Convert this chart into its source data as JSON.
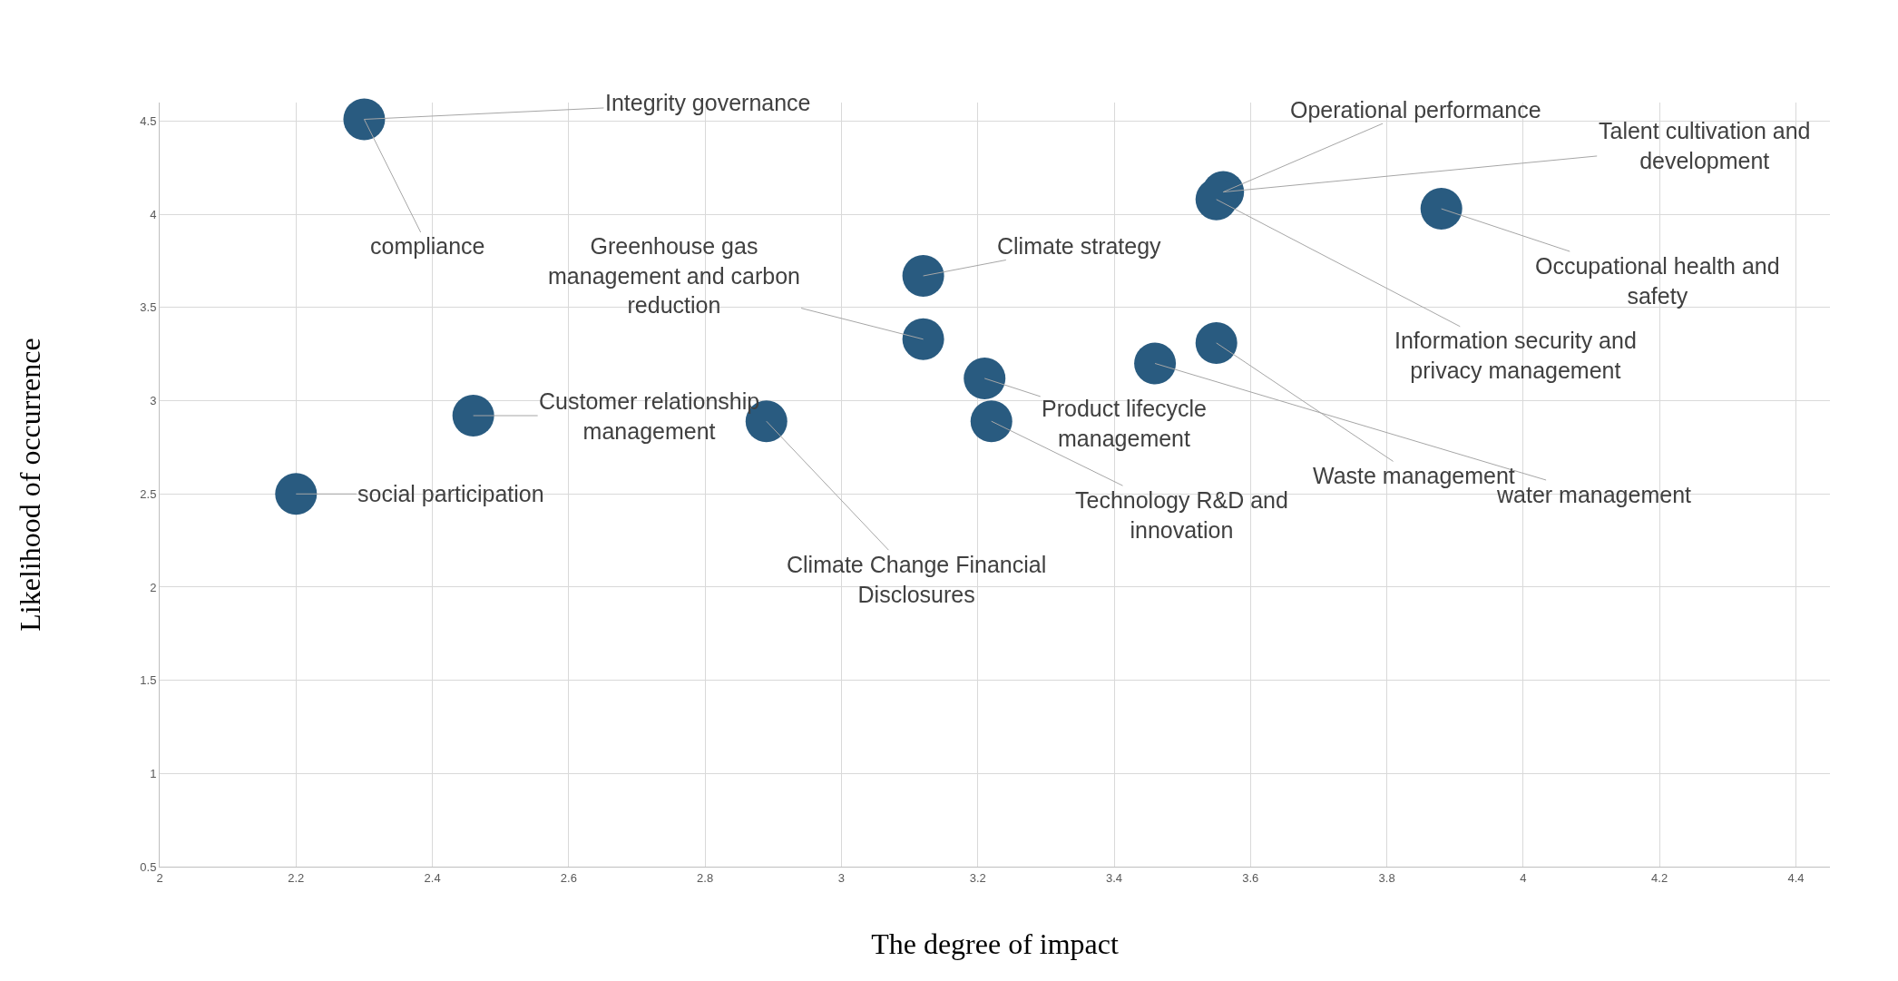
{
  "chart_data": {
    "type": "scatter",
    "xlabel": "The degree of impact",
    "ylabel": "Likelihood of occurrence",
    "x": [
      2.3,
      2.2,
      2.46,
      2.89,
      3.12,
      3.12,
      3.21,
      3.22,
      3.46,
      3.55,
      3.56,
      3.55,
      3.88
    ],
    "series": [
      {
        "color": "#295b80",
        "values": [
          4.51,
          2.5,
          2.92,
          2.89,
          3.67,
          3.33,
          3.12,
          2.89,
          3.2,
          3.31,
          4.12,
          4.08,
          4.03
        ]
      }
    ],
    "xlim": [
      2,
      4.45
    ],
    "xticks": [
      2,
      2.2,
      2.4,
      2.6,
      2.8,
      3,
      3.2,
      3.4,
      3.6,
      3.8,
      4,
      4.2,
      4.4
    ],
    "ylim": [
      0.5,
      4.6
    ],
    "yticks": [
      0.5,
      1,
      1.5,
      2,
      2.5,
      3,
      3.5,
      4,
      4.5
    ],
    "grid": true,
    "marker": "circle",
    "annotations": [
      {
        "text": "Integrity governance",
        "x": 2.3,
        "y": 4.51
      },
      {
        "text": "compliance",
        "x": 2.3,
        "y": 4.51
      },
      {
        "text": "social participation",
        "x": 2.2,
        "y": 2.5
      },
      {
        "text": "Customer relationship management",
        "x": 2.46,
        "y": 2.92
      },
      {
        "text": "Climate Change Financial Disclosures",
        "x": 2.89,
        "y": 2.89
      },
      {
        "text": "Climate strategy",
        "x": 3.12,
        "y": 3.67
      },
      {
        "text": "Greenhouse gas management and carbon reduction",
        "x": 3.12,
        "y": 3.33
      },
      {
        "text": "Product lifecycle management",
        "x": 3.21,
        "y": 3.12
      },
      {
        "text": "Technology R&D and innovation",
        "x": 3.22,
        "y": 2.89
      },
      {
        "text": "water management",
        "x": 3.46,
        "y": 3.2
      },
      {
        "text": "Waste management",
        "x": 3.55,
        "y": 3.31
      },
      {
        "text": "Operational performance",
        "x": 3.56,
        "y": 4.12
      },
      {
        "text": "Talent cultivation and development",
        "x": 3.56,
        "y": 4.12
      },
      {
        "text": "Information security and privacy management",
        "x": 3.55,
        "y": 4.08
      },
      {
        "text": "Occupational health and safety",
        "x": 3.88,
        "y": 4.03
      }
    ]
  }
}
